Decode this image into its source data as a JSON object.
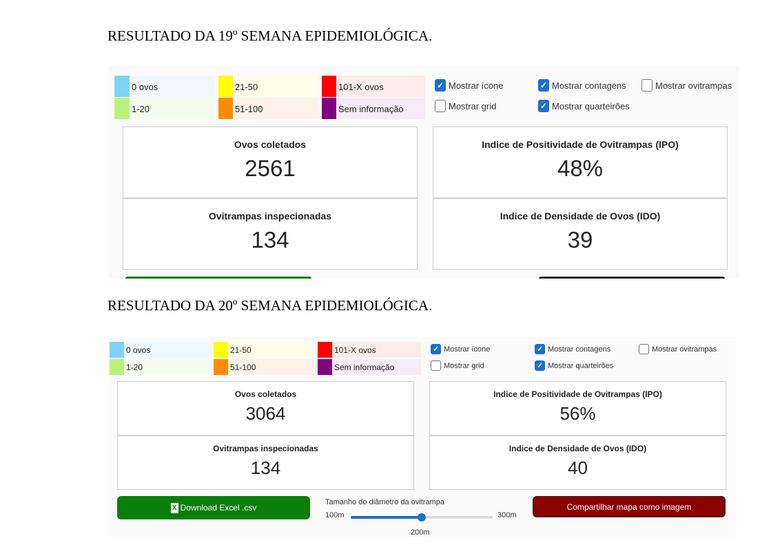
{
  "week19": {
    "title": "RESULTADO DA 19º SEMANA EPIDEMIOLÓGICA.",
    "legend": [
      {
        "label": "0 ovos",
        "color": "#7ed3f7"
      },
      {
        "label": "1-20",
        "color": "#b9f27a"
      },
      {
        "label": "21-50",
        "color": "#ffff00"
      },
      {
        "label": "51-100",
        "color": "#ff8c00"
      },
      {
        "label": "101-X ovos",
        "color": "#ff0000"
      },
      {
        "label": "Sem informação",
        "color": "#800080"
      }
    ],
    "options": [
      {
        "label": "Mostrar ícone",
        "checked": true
      },
      {
        "label": "Mostrar grid",
        "checked": false
      },
      {
        "label": "Mostrar contagens",
        "checked": true
      },
      {
        "label": "Mostrar quarteirões",
        "checked": true
      },
      {
        "label": "Mostrar ovitrampas",
        "checked": false
      }
    ],
    "stats": {
      "ovos_title": "Ovos coletados",
      "ovos_value": "2561",
      "ipo_title": "Indice de Positividade de Ovitrampas (IPO)",
      "ipo_value": "48%",
      "ovit_title": "Ovitrampas inspecionadas",
      "ovit_value": "134",
      "ido_title": "Indice de Densidade de Ovos (IDO)",
      "ido_value": "39"
    }
  },
  "week20": {
    "title": "RESULTADO DA 20º SEMANA EPIDEMIOLÓGICA.",
    "legend": [
      {
        "label": "0 ovos",
        "color": "#7ed3f7"
      },
      {
        "label": "1-20",
        "color": "#b9f27a"
      },
      {
        "label": "21-50",
        "color": "#ffff00"
      },
      {
        "label": "51-100",
        "color": "#ff8c00"
      },
      {
        "label": "101-X ovos",
        "color": "#ff0000"
      },
      {
        "label": "Sem informação",
        "color": "#800080"
      }
    ],
    "options": [
      {
        "label": "Mostrar ícone",
        "checked": true
      },
      {
        "label": "Mostrar grid",
        "checked": false
      },
      {
        "label": "Mostrar contagens",
        "checked": true
      },
      {
        "label": "Mostrar quarteirões",
        "checked": true
      },
      {
        "label": "Mostrar ovitrampas",
        "checked": false
      }
    ],
    "stats": {
      "ovos_title": "Ovos coletados",
      "ovos_value": "3064",
      "ipo_title": "Indice de Positividade de Ovitrampas (IPO)",
      "ipo_value": "56%",
      "ovit_title": "Ovitrampas inspecionadas",
      "ovit_value": "134",
      "ido_title": "Indice de Densidade de Ovos (IDO)",
      "ido_value": "40"
    },
    "download_label": "Download Excel .csv",
    "share_label": "Compartilhar mapa como imagem",
    "slider": {
      "label": "Tamanho do diâmetro da ovitrampa",
      "min_label": "100m",
      "max_label": "300m",
      "value_label": "200m",
      "min": 100,
      "max": 300,
      "value": 200
    },
    "colors": {
      "download": "#0a7f0a",
      "share": "#8b0000",
      "slider": "#1a6fd1"
    }
  }
}
